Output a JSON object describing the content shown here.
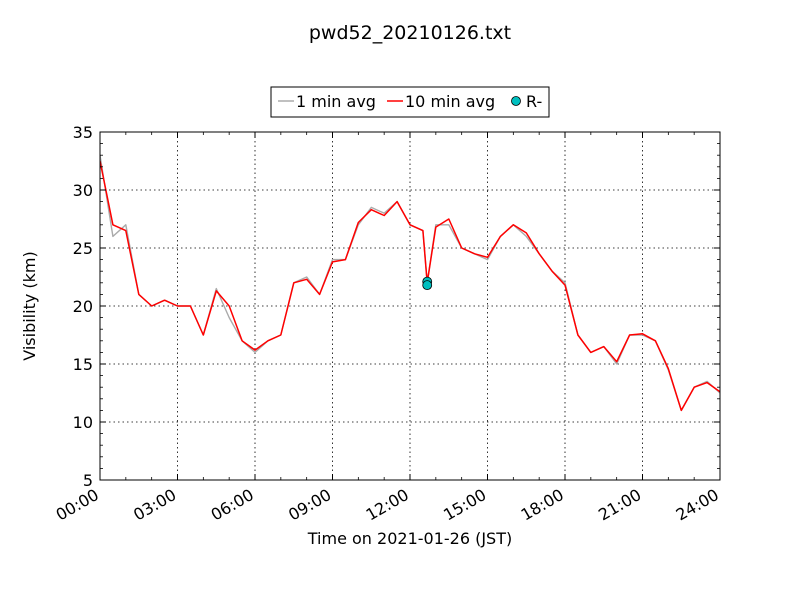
{
  "chart_data": {
    "type": "line",
    "title": "pwd52_20210126.txt",
    "xlabel": "Time on 2021-01-26 (JST)",
    "ylabel": "Visibility (km)",
    "xlim": [
      "00:00",
      "24:00"
    ],
    "ylim": [
      5,
      35
    ],
    "x_ticks": [
      "00:00",
      "03:00",
      "06:00",
      "09:00",
      "12:00",
      "15:00",
      "18:00",
      "21:00",
      "24:00"
    ],
    "y_ticks": [
      5,
      10,
      15,
      20,
      25,
      30,
      35
    ],
    "grid": true,
    "legend_position": "top-center (above plot)",
    "colors": {
      "one_min": "#aaaaaa",
      "ten_min": "#ff0000",
      "event": "#00bfbf"
    },
    "series": [
      {
        "name": "1 min avg",
        "style": "line",
        "x": [
          "00:00",
          "00:30",
          "01:00",
          "01:30",
          "02:00",
          "02:30",
          "03:00",
          "03:30",
          "04:00",
          "04:30",
          "05:00",
          "05:30",
          "06:00",
          "06:30",
          "07:00",
          "07:30",
          "08:00",
          "08:30",
          "09:00",
          "09:30",
          "10:00",
          "10:30",
          "11:00",
          "11:30",
          "12:00",
          "12:30",
          "12:40",
          "13:00",
          "13:30",
          "14:00",
          "14:30",
          "15:00",
          "15:30",
          "16:00",
          "16:30",
          "17:00",
          "17:30",
          "18:00",
          "18:30",
          "19:00",
          "19:30",
          "20:00",
          "20:30",
          "21:00",
          "21:30",
          "22:00",
          "22:30",
          "23:00",
          "23:30",
          "24:00"
        ],
        "values": [
          33,
          26,
          27,
          21,
          20,
          20.5,
          20,
          20,
          17.5,
          21.5,
          19,
          17,
          16,
          17,
          17.5,
          22,
          22.5,
          21,
          24,
          24,
          27,
          28.5,
          28,
          29,
          27,
          26.5,
          22,
          27,
          27,
          25,
          24.5,
          24,
          26,
          27,
          26,
          24.5,
          23,
          22,
          17.5,
          16,
          16.5,
          15,
          17.5,
          17.5,
          17,
          14.5,
          11,
          13,
          13.5,
          12.5
        ]
      },
      {
        "name": "10 min avg",
        "style": "line",
        "x": [
          "00:00",
          "00:30",
          "01:00",
          "01:30",
          "02:00",
          "02:30",
          "03:00",
          "03:30",
          "04:00",
          "04:30",
          "05:00",
          "05:30",
          "06:00",
          "06:30",
          "07:00",
          "07:30",
          "08:00",
          "08:30",
          "09:00",
          "09:30",
          "10:00",
          "10:30",
          "11:00",
          "11:30",
          "12:00",
          "12:30",
          "12:40",
          "13:00",
          "13:30",
          "14:00",
          "14:30",
          "15:00",
          "15:30",
          "16:00",
          "16:30",
          "17:00",
          "17:30",
          "18:00",
          "18:30",
          "19:00",
          "19:30",
          "20:00",
          "20:30",
          "21:00",
          "21:30",
          "22:00",
          "22:30",
          "23:00",
          "23:30",
          "24:00"
        ],
        "values": [
          32.5,
          27,
          26.5,
          21,
          20,
          20.5,
          20,
          20,
          17.5,
          21.3,
          20,
          17,
          16.2,
          17,
          17.5,
          22,
          22.3,
          21,
          23.8,
          24,
          27.2,
          28.3,
          27.8,
          29,
          27,
          26.5,
          22,
          26.8,
          27.5,
          25,
          24.5,
          24.2,
          26,
          27,
          26.3,
          24.5,
          23,
          21.8,
          17.5,
          16,
          16.5,
          15.2,
          17.5,
          17.6,
          17,
          14.6,
          11,
          13,
          13.4,
          12.6
        ]
      },
      {
        "name": "R-",
        "style": "marker",
        "x": [
          "12:40",
          "12:40"
        ],
        "values": [
          22.1,
          21.8
        ]
      }
    ]
  }
}
